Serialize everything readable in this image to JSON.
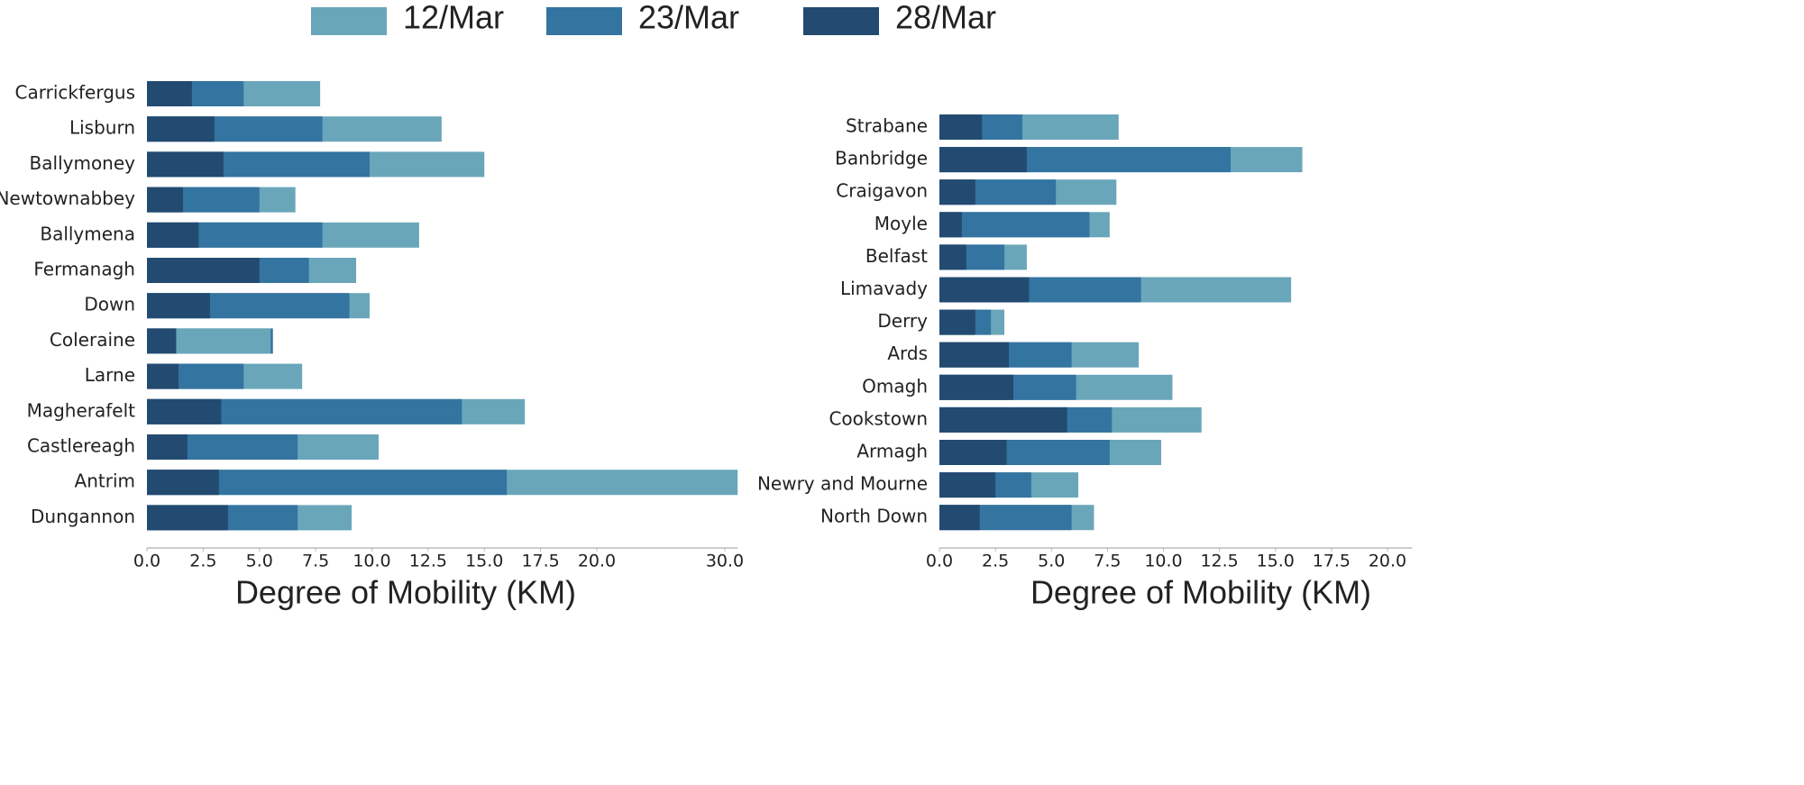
{
  "chart_data": [
    {
      "type": "bar",
      "orientation": "horizontal",
      "bars": "overlaid",
      "x_label": "Degree of Mobility (KM)",
      "categories": [
        "Carrickfergus",
        "Lisburn",
        "Ballymoney",
        "Newtownabbey",
        "Ballymena",
        "Fermanagh",
        "Down",
        "Coleraine",
        "Larne",
        "Magherafelt",
        "Castlereagh",
        "Antrim",
        "Dungannon"
      ],
      "series": [
        {
          "name": "12/Mar",
          "color": "#6aa6ba",
          "values": [
            7.7,
            13.1,
            15.0,
            6.6,
            12.1,
            9.3,
            9.9,
            5.5,
            6.9,
            16.8,
            10.3,
            31.0,
            9.1
          ]
        },
        {
          "name": "23/Mar",
          "color": "#3474a0",
          "values": [
            4.3,
            7.8,
            9.9,
            5.0,
            7.8,
            7.2,
            9.0,
            5.6,
            4.3,
            14.0,
            6.7,
            16.0,
            6.7
          ]
        },
        {
          "name": "28/Mar",
          "color": "#234a70",
          "values": [
            2.0,
            3.0,
            3.4,
            1.6,
            2.3,
            5.0,
            2.8,
            1.3,
            1.4,
            3.3,
            1.8,
            3.2,
            3.6
          ]
        }
      ],
      "xlim": [
        0,
        31
      ],
      "xticks": [
        {
          "value": 0,
          "label": "0.0"
        },
        2.5,
        {
          "value": 5,
          "label": "5.0"
        },
        7.5,
        {
          "value": 10,
          "label": "10.0"
        },
        12.5,
        {
          "value": 15,
          "label": "15.0"
        },
        17.5,
        {
          "value": 20,
          "label": "20.0"
        },
        {
          "value": 30,
          "label": "30.0"
        }
      ]
    },
    {
      "type": "bar",
      "orientation": "horizontal",
      "bars": "overlaid",
      "x_label": "Degree of Mobility (KM)",
      "categories": [
        "Strabane",
        "Banbridge",
        "Craigavon",
        "Moyle",
        "Belfast",
        "Limavady",
        "Derry",
        "Ards",
        "Omagh",
        "Cookstown",
        "Armagh",
        "Newry and Mourne",
        "North Down"
      ],
      "series": [
        {
          "name": "12/Mar",
          "color": "#6aa6ba",
          "values": [
            8.0,
            16.2,
            7.9,
            7.6,
            3.9,
            15.7,
            2.9,
            8.9,
            10.4,
            11.7,
            9.9,
            6.2,
            6.9
          ]
        },
        {
          "name": "23/Mar",
          "color": "#3474a0",
          "values": [
            3.7,
            13.0,
            5.2,
            6.7,
            2.9,
            9.0,
            2.3,
            5.9,
            6.1,
            7.7,
            7.6,
            4.1,
            5.9
          ]
        },
        {
          "name": "28/Mar",
          "color": "#234a70",
          "values": [
            1.9,
            3.9,
            1.6,
            1.0,
            1.2,
            4.0,
            1.6,
            3.1,
            3.3,
            5.7,
            3.0,
            2.5,
            1.8
          ]
        }
      ],
      "xlim": [
        0,
        21.1
      ],
      "xticks": [
        {
          "value": 0,
          "label": "0.0"
        },
        2.5,
        {
          "value": 5,
          "label": "5.0"
        },
        7.5,
        {
          "value": 10,
          "label": "10.0"
        },
        12.5,
        {
          "value": 15,
          "label": "15.0"
        },
        17.5,
        {
          "value": 20,
          "label": "20.0"
        }
      ]
    }
  ]
}
